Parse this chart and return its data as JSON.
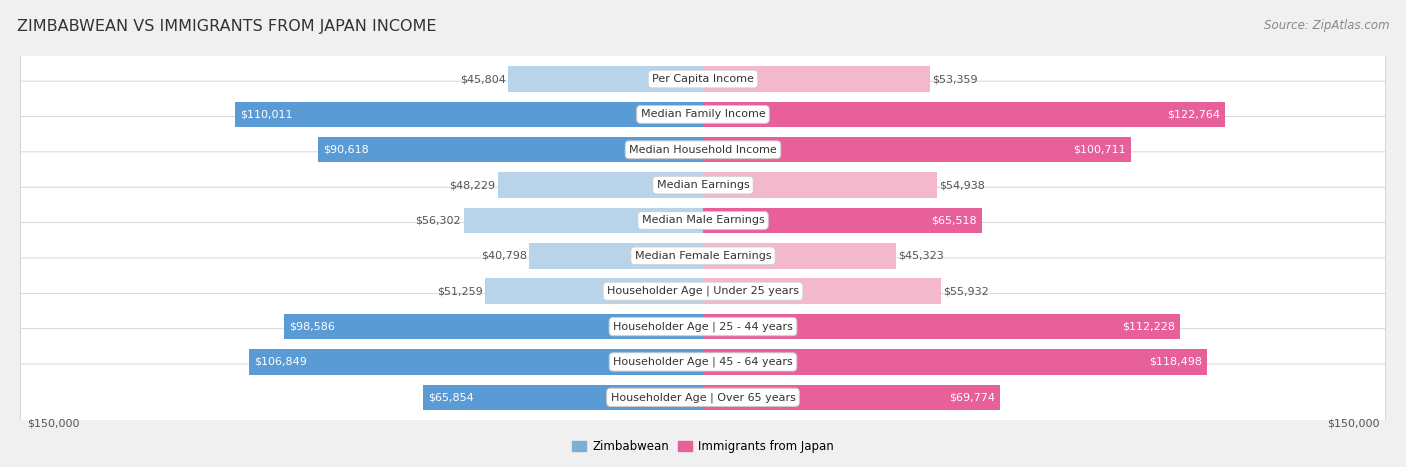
{
  "title": "ZIMBABWEAN VS IMMIGRANTS FROM JAPAN INCOME",
  "source": "Source: ZipAtlas.com",
  "categories": [
    "Per Capita Income",
    "Median Family Income",
    "Median Household Income",
    "Median Earnings",
    "Median Male Earnings",
    "Median Female Earnings",
    "Householder Age | Under 25 years",
    "Householder Age | 25 - 44 years",
    "Householder Age | 45 - 64 years",
    "Householder Age | Over 65 years"
  ],
  "zimbabwean_values": [
    45804,
    110011,
    90618,
    48229,
    56302,
    40798,
    51259,
    98586,
    106849,
    65854
  ],
  "japan_values": [
    53359,
    122764,
    100711,
    54938,
    65518,
    45323,
    55932,
    112228,
    118498,
    69774
  ],
  "zimbabwean_labels": [
    "$45,804",
    "$110,011",
    "$90,618",
    "$48,229",
    "$56,302",
    "$40,798",
    "$51,259",
    "$98,586",
    "$106,849",
    "$65,854"
  ],
  "japan_labels": [
    "$53,359",
    "$122,764",
    "$100,711",
    "$54,938",
    "$65,518",
    "$45,323",
    "$55,932",
    "$112,228",
    "$118,498",
    "$69,774"
  ],
  "zim_color_light": "#b8d4ea",
  "zim_color_dark": "#5b9bd5",
  "japan_color_light": "#f4b8cc",
  "japan_color_dark": "#e8609a",
  "zim_legend_color": "#7bafd4",
  "japan_legend_color": "#e8609a",
  "max_value": 150000,
  "background_color": "#f0f0f0",
  "row_bg_color": "#ffffff",
  "label_color_normal": "#555555",
  "label_color_highlight": "#ffffff",
  "highlight_threshold": 65000,
  "title_fontsize": 11.5,
  "source_fontsize": 8.5,
  "bar_label_fontsize": 8,
  "category_fontsize": 8,
  "axis_label_fontsize": 8,
  "legend_fontsize": 8.5
}
